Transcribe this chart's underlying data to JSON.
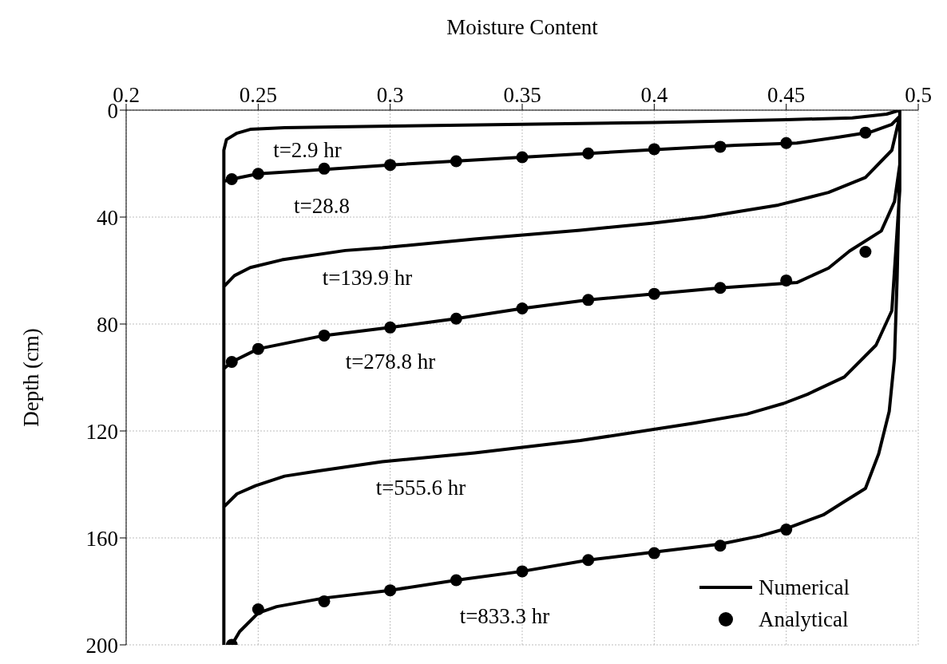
{
  "chart_data": {
    "type": "line",
    "xlabel": "Moisture Content",
    "ylabel": "Depth (cm)",
    "xlim": [
      0.2,
      0.5
    ],
    "xticks": [
      0.2,
      0.25,
      0.3,
      0.35,
      0.4,
      0.45,
      0.5
    ],
    "ylim": [
      200,
      0
    ],
    "yticks": [
      0,
      40,
      80,
      120,
      160,
      200
    ],
    "grid": true,
    "legend": "bottom right",
    "series": [
      {
        "name": "Numerical",
        "color": "#000000",
        "marker": "none",
        "line_style": "solid",
        "x": [
          0.237,
          0.237,
          0.238,
          0.242,
          0.247,
          0.26,
          0.3,
          0.35,
          0.4,
          0.45,
          0.475,
          0.488,
          0.493,
          null,
          0.237,
          0.24,
          0.25,
          0.263,
          0.3,
          0.35,
          0.4,
          0.431,
          0.454,
          0.47,
          0.482,
          0.49,
          0.493,
          0.493,
          null,
          0.237,
          0.241,
          0.247,
          0.259,
          0.283,
          0.297,
          0.332,
          0.372,
          0.399,
          0.419,
          0.447,
          0.466,
          0.48,
          0.49,
          0.493,
          0.493,
          null,
          0.237,
          0.24,
          0.25,
          0.275,
          0.3,
          0.325,
          0.35,
          0.375,
          0.4,
          0.425,
          0.454,
          0.466,
          0.474,
          0.486,
          0.491,
          0.493,
          0.493,
          null,
          0.237,
          0.242,
          0.249,
          0.26,
          0.273,
          0.297,
          0.332,
          0.372,
          0.415,
          0.435,
          0.449,
          0.458,
          0.472,
          0.484,
          0.49,
          0.493,
          0.493,
          null,
          0.24,
          0.243,
          0.25,
          0.257,
          0.275,
          0.3,
          0.325,
          0.35,
          0.375,
          0.4,
          0.425,
          0.44,
          0.45,
          0.464,
          0.472,
          0.48,
          0.485,
          0.489,
          0.491,
          0.492,
          0.493,
          0.493
        ],
        "values": [
          200,
          15,
          11,
          8.6,
          7.2,
          6.6,
          6,
          5.3,
          4.6,
          3.6,
          2.9,
          1.5,
          0,
          null,
          26.7,
          25.8,
          23.8,
          23,
          20.5,
          17.6,
          14.8,
          13.1,
          12.3,
          10.1,
          8.2,
          5.3,
          2.3,
          0,
          null,
          66,
          61.9,
          58.9,
          56,
          52.5,
          51.5,
          48.2,
          44.9,
          42.3,
          40,
          35.5,
          30.8,
          25.2,
          15,
          2.3,
          0,
          null,
          96.7,
          94.2,
          89.3,
          84.3,
          81.3,
          78,
          74.2,
          71,
          68.7,
          66.5,
          64.5,
          59.1,
          52.7,
          45.2,
          34.2,
          20.4,
          0,
          null,
          148.4,
          143.5,
          140.5,
          136.9,
          134.9,
          131.5,
          128.2,
          123.6,
          117.1,
          113.7,
          109.7,
          106.3,
          99.8,
          87.9,
          75,
          30,
          0,
          null,
          200,
          195,
          188.1,
          185.7,
          182.5,
          179.6,
          175.8,
          172.5,
          168.3,
          165.3,
          162.3,
          159.3,
          156.5,
          151.4,
          146.4,
          141.5,
          128.6,
          112.7,
          92.9,
          63,
          20,
          0
        ]
      },
      {
        "name": "Analytical",
        "type": "scatter",
        "color": "#000000",
        "marker": "circle",
        "x": [
          0.24,
          0.25,
          0.275,
          0.3,
          0.325,
          0.35,
          0.375,
          0.4,
          0.425,
          0.45,
          0.48,
          0.24,
          0.25,
          0.275,
          0.3,
          0.325,
          0.35,
          0.375,
          0.4,
          0.425,
          0.45,
          0.48,
          0.24,
          0.25,
          0.275,
          0.3,
          0.325,
          0.35,
          0.375,
          0.4,
          0.425,
          0.45
        ],
        "values": [
          25.8,
          23.8,
          21.9,
          20.5,
          19.1,
          17.6,
          16.2,
          14.6,
          13.7,
          12.3,
          8.4,
          94.2,
          89.3,
          84.3,
          81.3,
          78,
          74.2,
          71,
          68.7,
          66.5,
          63.7,
          53,
          200,
          186.7,
          183.7,
          179.6,
          175.8,
          172.5,
          168.3,
          165.7,
          162.9,
          156.9
        ]
      }
    ],
    "annotations": [
      "t=2.9 hr",
      "t=28.8",
      "t=139.9 hr",
      "t=278.8 hr",
      "t=555.6 hr",
      "t=833.3 hr"
    ]
  }
}
